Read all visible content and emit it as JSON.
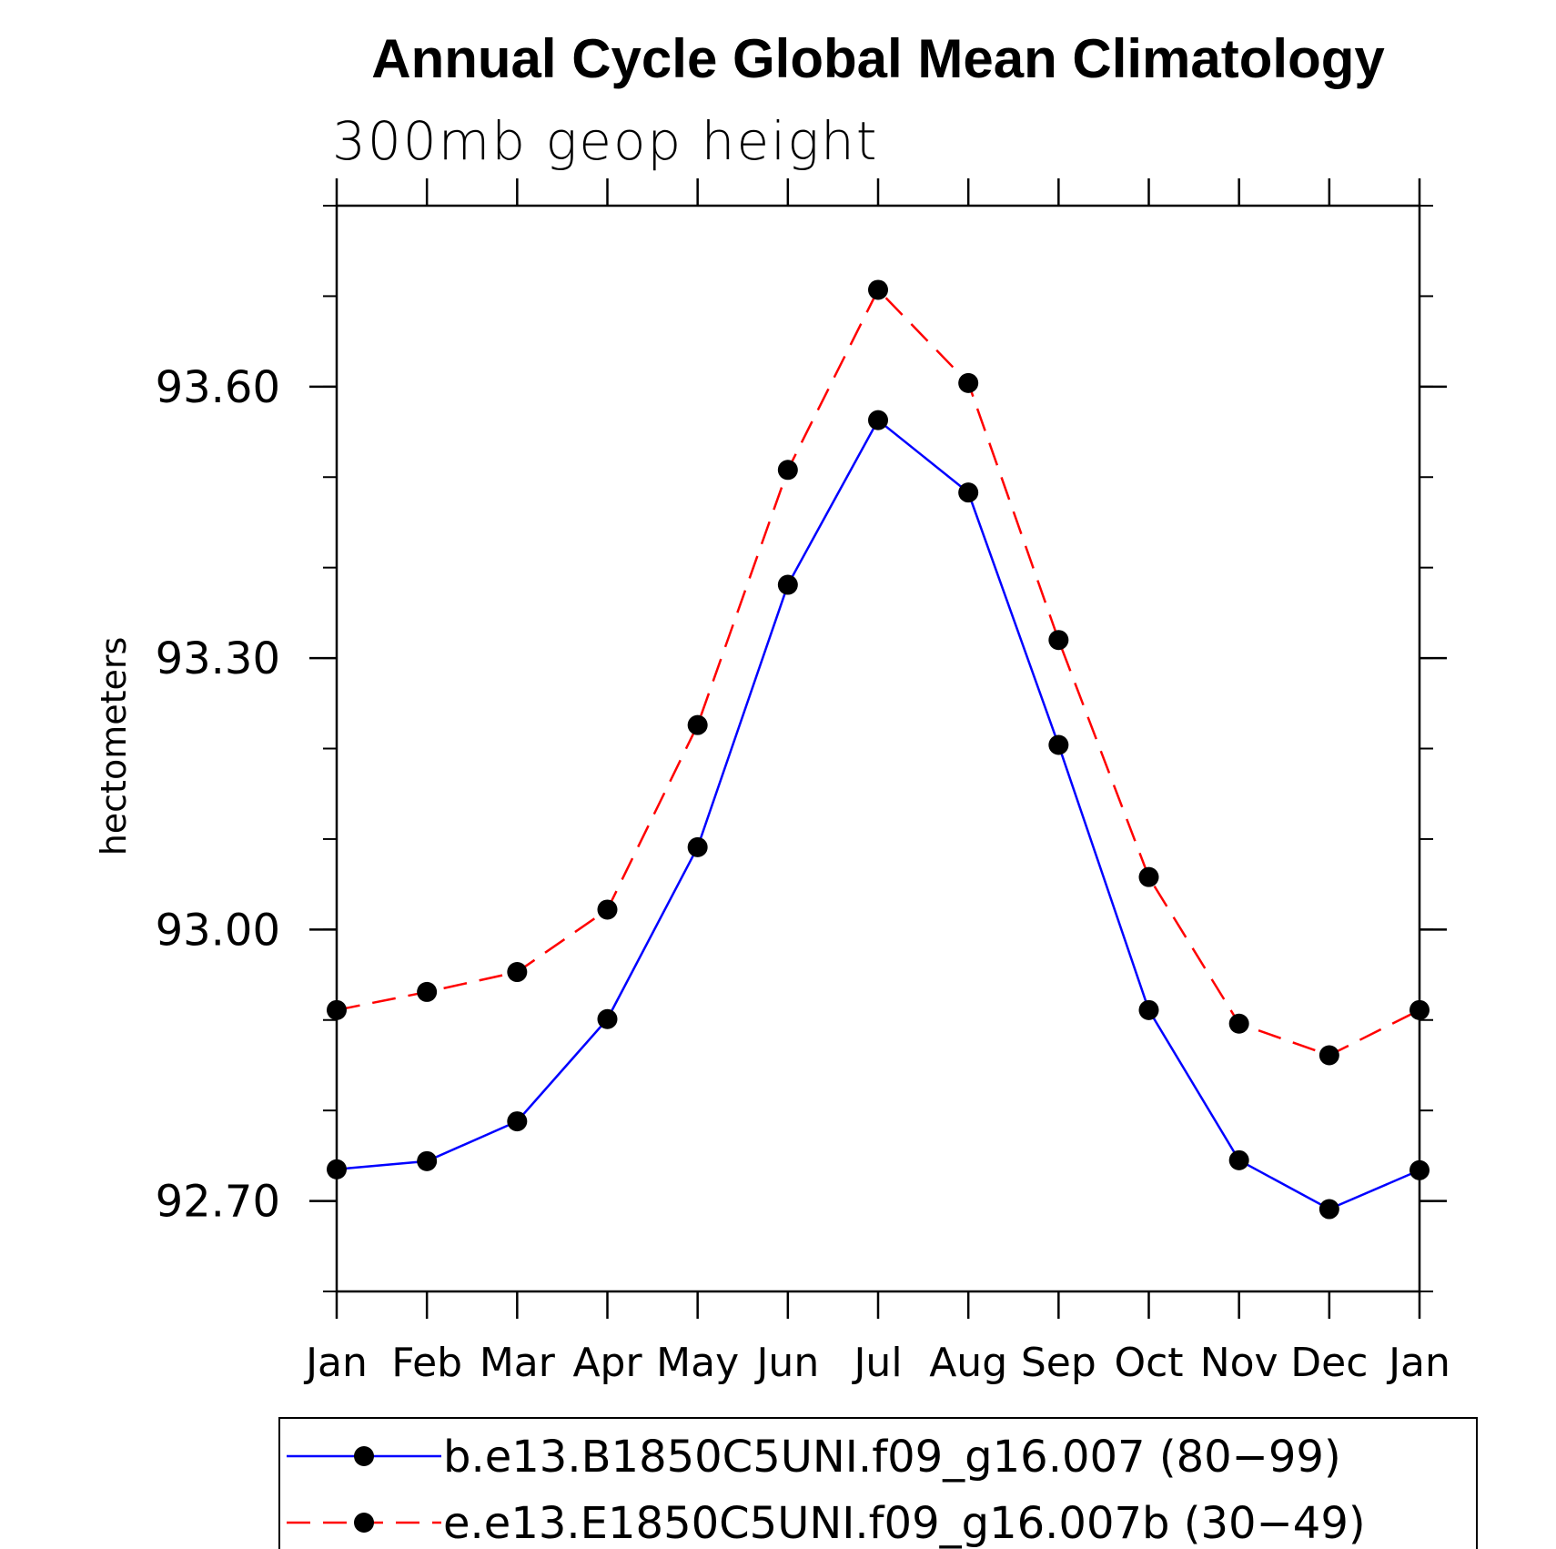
{
  "chart_data": {
    "type": "line",
    "title": "Annual Cycle Global Mean Climatology",
    "subtitle": "300mb geop height",
    "ylabel": "hectometers",
    "xlabel": "",
    "categories": [
      "Jan",
      "Feb",
      "Mar",
      "Apr",
      "May",
      "Jun",
      "Jul",
      "Aug",
      "Sep",
      "Oct",
      "Nov",
      "Dec",
      "Jan"
    ],
    "ylim": [
      92.6,
      93.8
    ],
    "yticks_labeled": [
      "92.70",
      "93.00",
      "93.30",
      "93.60"
    ],
    "ytick_values": [
      92.7,
      93.0,
      93.3,
      93.6
    ],
    "yminor_step": 0.1,
    "series": [
      {
        "name": "b.e13.B1850C5UNI.f09_g16.007 (80−99)",
        "color": "#0000ff",
        "dash": "solid",
        "values": [
          92.735,
          92.744,
          92.788,
          92.901,
          93.091,
          93.381,
          93.563,
          93.483,
          93.204,
          92.911,
          92.745,
          92.691,
          92.734
        ]
      },
      {
        "name": "e.e13.E1850C5UNI.f09_g16.007b (30−49)",
        "color": "#ff0000",
        "dash": "dashed",
        "values": [
          92.911,
          92.931,
          92.953,
          93.022,
          93.226,
          93.508,
          93.707,
          93.604,
          93.32,
          93.058,
          92.896,
          92.861,
          92.911
        ]
      }
    ]
  }
}
